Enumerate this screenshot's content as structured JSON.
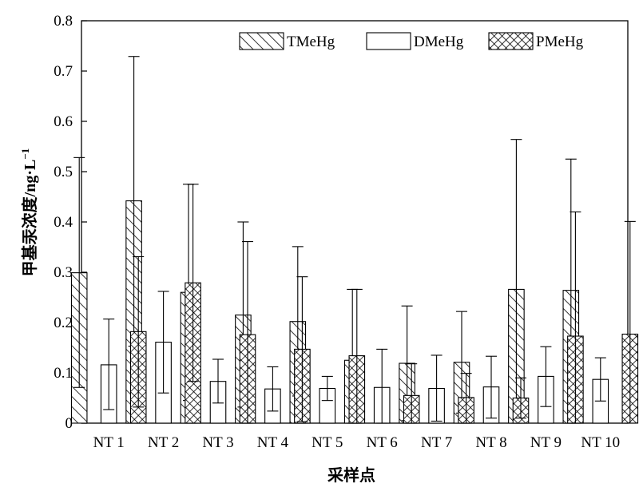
{
  "chart_data": {
    "type": "bar",
    "xlabel": "采样点",
    "ylabel_main": "甲基汞浓度/ng·L",
    "ylabel_sup": "−1",
    "ylim": [
      0,
      0.8
    ],
    "yticks": [
      "0",
      "0.1",
      "0.2",
      "0.3",
      "0.4",
      "0.5",
      "0.6",
      "0.7",
      "0.8"
    ],
    "ytick_values": [
      0,
      0.1,
      0.2,
      0.3,
      0.4,
      0.5,
      0.6,
      0.7,
      0.8
    ],
    "categories": [
      "NT 1",
      "NT 2",
      "NT 3",
      "NT 4",
      "NT 5",
      "NT 6",
      "NT 7",
      "NT 8",
      "NT 9",
      "NT 10"
    ],
    "legend_position": "top-right",
    "series": [
      {
        "name": "TMeHg",
        "pattern": "diagonal-hatch",
        "values": [
          0.299,
          0.442,
          0.26,
          0.215,
          0.202,
          0.125,
          0.119,
          0.121,
          0.266,
          0.264
        ],
        "error_low": [
          0.071,
          0.153,
          0.045,
          0.032,
          0.054,
          0.0,
          0.005,
          0.02,
          0.0,
          0.0
        ],
        "error_high": [
          0.528,
          0.729,
          0.475,
          0.4,
          0.351,
          0.266,
          0.233,
          0.222,
          0.564,
          0.525
        ]
      },
      {
        "name": "DMeHg",
        "pattern": "open",
        "values": [
          0.116,
          0.161,
          0.083,
          0.068,
          0.069,
          0.071,
          0.069,
          0.072,
          0.093,
          0.087
        ],
        "error_low": [
          0.027,
          0.06,
          0.04,
          0.024,
          0.045,
          0.0,
          0.004,
          0.01,
          0.033,
          0.044
        ],
        "error_high": [
          0.207,
          0.262,
          0.127,
          0.112,
          0.093,
          0.147,
          0.135,
          0.133,
          0.152,
          0.13
        ]
      },
      {
        "name": "PMeHg",
        "pattern": "cross-hatch",
        "values": [
          0.182,
          0.279,
          0.176,
          0.147,
          0.134,
          0.055,
          0.051,
          0.05,
          0.173,
          0.177
        ],
        "error_low": [
          0.032,
          0.083,
          0.0,
          0.003,
          0.0,
          0.0,
          0.0,
          0.01,
          0.0,
          0.0
        ],
        "error_high": [
          0.331,
          0.475,
          0.361,
          0.291,
          0.266,
          0.118,
          0.099,
          0.09,
          0.42,
          0.401
        ]
      }
    ]
  }
}
